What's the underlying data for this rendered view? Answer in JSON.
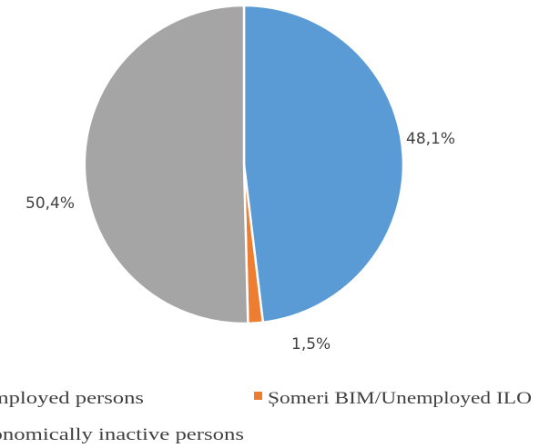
{
  "chart_data": {
    "type": "pie",
    "title": "",
    "slices": [
      {
        "label": "Persoane ocupate/Employed persons",
        "value": 48.1,
        "display": "48,1%",
        "color": "#5B9BD5"
      },
      {
        "label": "Șomeri BIM/Unemployed ILO",
        "value": 1.5,
        "display": "1,5%",
        "color": "#ED7D31"
      },
      {
        "label": "Persoane inactive economic/Economically inactive persons",
        "value": 50.4,
        "display": "50,4%",
        "color": "#A5A5A5"
      }
    ],
    "start_angle_deg": 0,
    "direction": "clockwise",
    "legend": {
      "placement": "bottom",
      "items": [
        {
          "text": "...mployed persons",
          "color": "#5B9BD5"
        },
        {
          "text": "Șomeri BIM/Unemployed ILO",
          "color": "#ED7D31"
        },
        {
          "text": "...onomically inactive persons",
          "color": "#A5A5A5"
        }
      ]
    }
  }
}
